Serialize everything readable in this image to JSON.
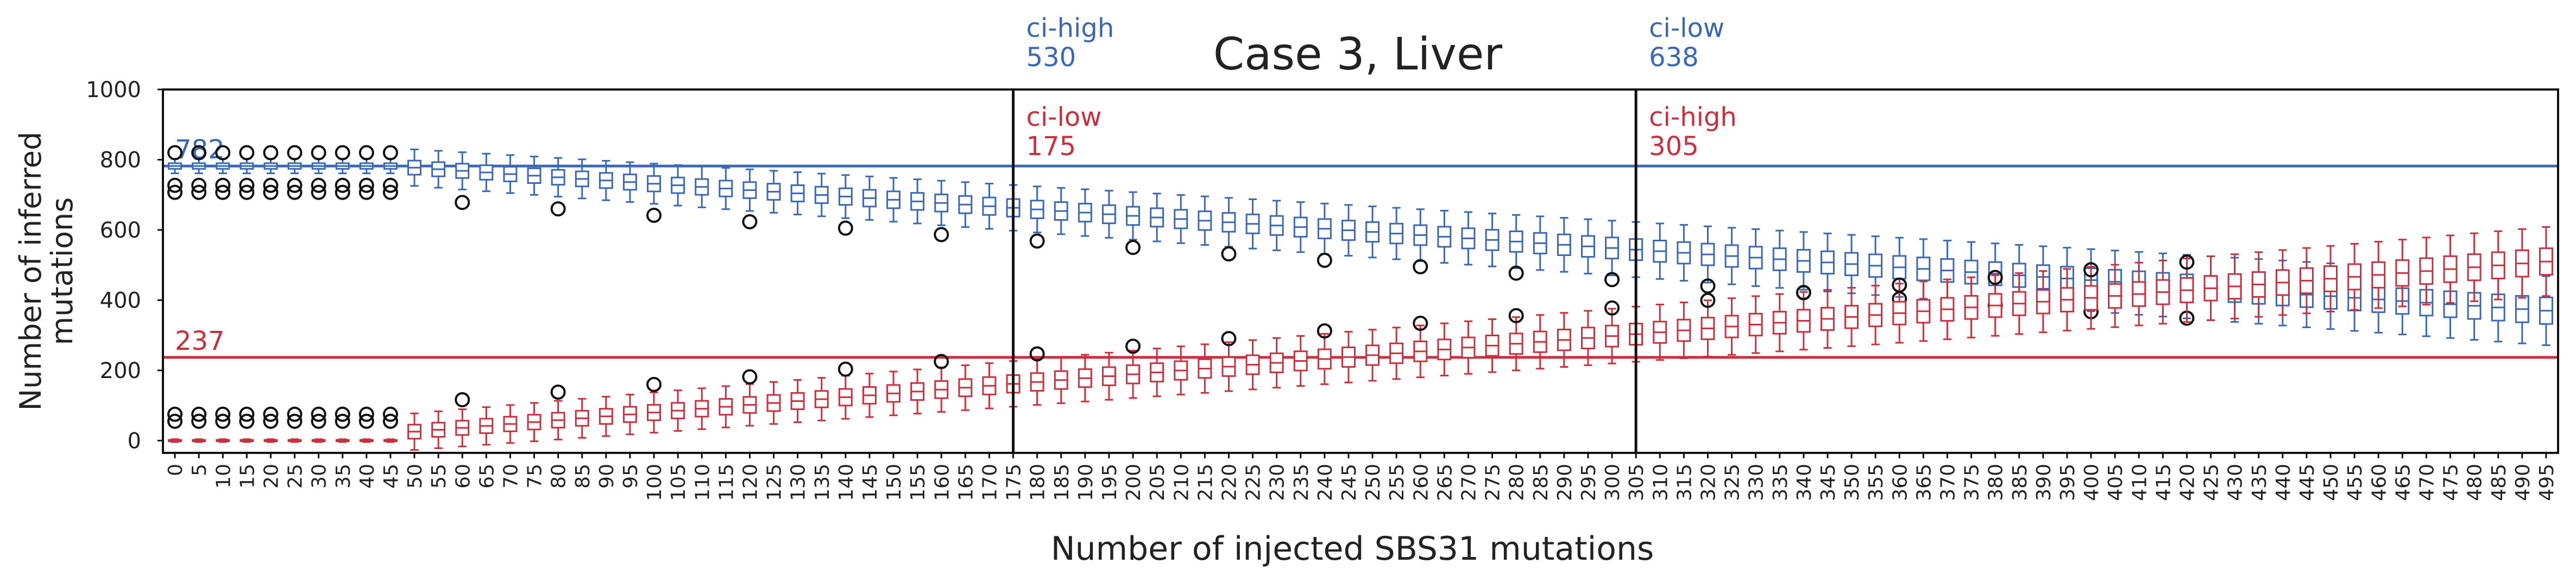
{
  "chart_data": {
    "type": "box",
    "title": "Case 3, Liver",
    "xlabel": "Number of injected SBS31 mutations",
    "ylabel": "Number of inferred mutations",
    "ylim": [
      -35,
      1000
    ],
    "yticks": [
      0,
      200,
      400,
      600,
      800,
      1000
    ],
    "x_start": 0,
    "x_step": 5,
    "x_count": 100,
    "grid": false,
    "colors": {
      "blue": "#3a68b4",
      "red": "#c9303e",
      "black": "#111111"
    },
    "series": [
      {
        "color": "#3a68b4",
        "reference_value": 782,
        "reference_label": "782",
        "median_start": 782,
        "values_note": "median inferred counts",
        "q_half_width": 14
      },
      {
        "color": "#c9303e",
        "reference_value": 237,
        "reference_label": "237",
        "median_start": 0
      }
    ],
    "vertical_lines": [
      {
        "x": 175,
        "top_label": "ci-high",
        "top_value": "530",
        "top_color": "#3a68b4",
        "low_label": "ci-low",
        "low_value": "175",
        "low_color": "#c9303e"
      },
      {
        "x": 305,
        "top_label": "ci-low",
        "top_value": "638",
        "top_color": "#3a68b4",
        "low_label": "ci-high",
        "low_value": "305",
        "low_color": "#c9303e"
      }
    ]
  }
}
